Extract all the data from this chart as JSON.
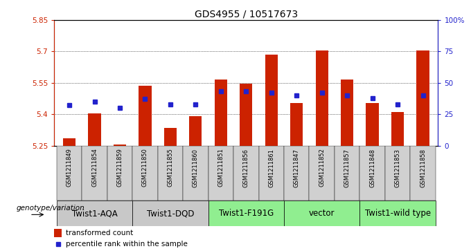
{
  "title": "GDS4955 / 10517673",
  "samples": [
    "GSM1211849",
    "GSM1211854",
    "GSM1211859",
    "GSM1211850",
    "GSM1211855",
    "GSM1211860",
    "GSM1211851",
    "GSM1211856",
    "GSM1211861",
    "GSM1211847",
    "GSM1211852",
    "GSM1211857",
    "GSM1211848",
    "GSM1211853",
    "GSM1211858"
  ],
  "bar_values": [
    5.285,
    5.405,
    5.255,
    5.535,
    5.335,
    5.39,
    5.565,
    5.545,
    5.685,
    5.455,
    5.705,
    5.565,
    5.455,
    5.41,
    5.705
  ],
  "percentile_values": [
    32,
    35,
    30,
    37,
    33,
    33,
    43,
    43,
    42,
    40,
    42,
    40,
    38,
    33,
    40
  ],
  "y_min": 5.25,
  "y_max": 5.85,
  "y_ticks": [
    5.25,
    5.4,
    5.55,
    5.7,
    5.85
  ],
  "y_tick_labels": [
    "5.25",
    "5.4",
    "5.55",
    "5.7",
    "5.85"
  ],
  "y2_ticks": [
    0,
    25,
    50,
    75,
    100
  ],
  "y2_tick_labels": [
    "0",
    "25",
    "50",
    "75",
    "100%"
  ],
  "groups": [
    {
      "label": "Twist1-AQA",
      "start": 0,
      "end": 3,
      "color": "#c8c8c8"
    },
    {
      "label": "Twist1-DQD",
      "start": 3,
      "end": 6,
      "color": "#c8c8c8"
    },
    {
      "label": "Twist1-F191G",
      "start": 6,
      "end": 9,
      "color": "#90ee90"
    },
    {
      "label": "vector",
      "start": 9,
      "end": 12,
      "color": "#90ee90"
    },
    {
      "label": "Twist1-wild type",
      "start": 12,
      "end": 15,
      "color": "#90ee90"
    }
  ],
  "bar_color": "#cc2200",
  "dot_color": "#2222cc",
  "bar_width": 0.5,
  "genotype_label": "genotype/variation",
  "legend_bar_label": "transformed count",
  "legend_dot_label": "percentile rank within the sample",
  "background_color": "#ffffff",
  "plot_bg_color": "#ffffff",
  "font_size_title": 10,
  "font_size_ticks": 7.5,
  "font_size_samples": 6,
  "font_size_group": 8.5,
  "font_size_genotype": 7.5,
  "font_size_legend": 7.5
}
